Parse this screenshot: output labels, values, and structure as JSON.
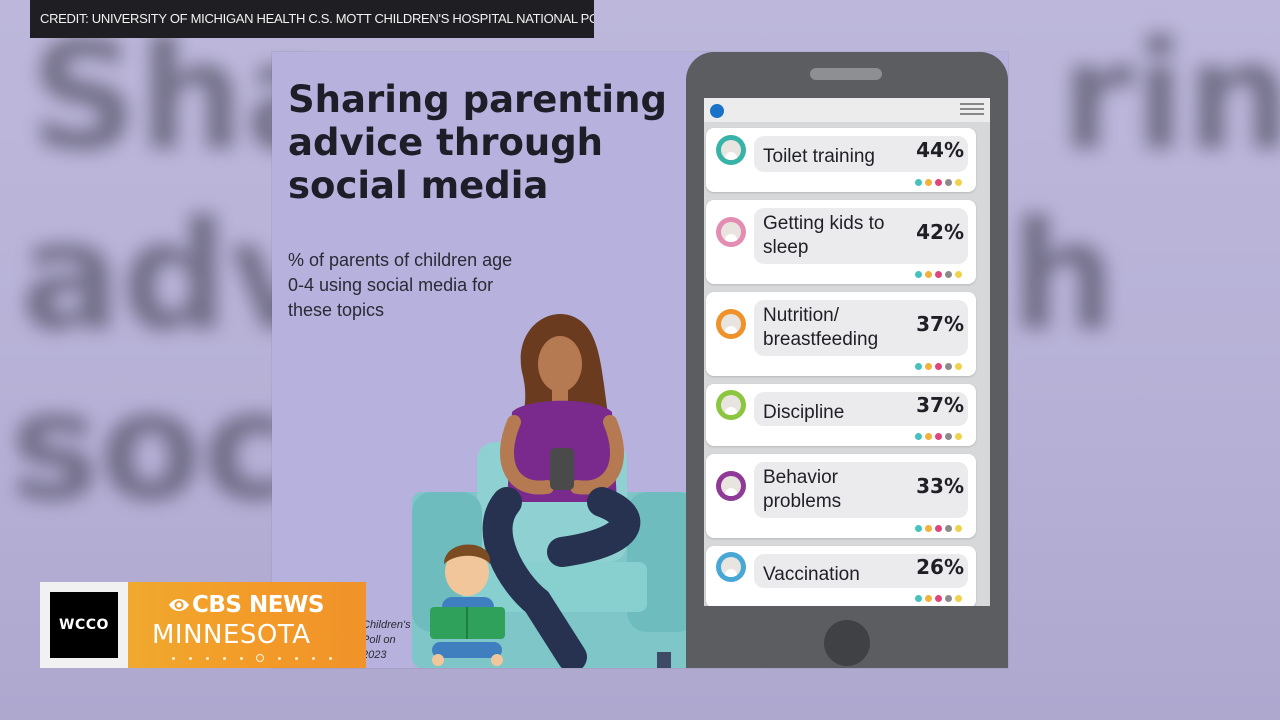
{
  "credit": "CREDIT: UNIVERSITY OF MICHIGAN HEALTH C.S. MOTT CHILDREN'S HOSPITAL NATIONAL POLL ON CHILDREN'S HEALTH",
  "infographic": {
    "title": "Sharing parenting advice through social media",
    "subtitle": "% of parents of children age 0-4 using social media for these topics",
    "source_fragment": "Children's Poll on 2023"
  },
  "chart_data": {
    "type": "table",
    "rows": [
      {
        "label": "Toilet training",
        "value": "44%",
        "avatar_color": "#38b3a8"
      },
      {
        "label": "Getting kids to sleep",
        "value": "42%",
        "avatar_color": "#e48db3"
      },
      {
        "label": "Nutrition/ breastfeeding",
        "value": "37%",
        "avatar_color": "#f0922a"
      },
      {
        "label": "Discipline",
        "value": "37%",
        "avatar_color": "#8cc63e"
      },
      {
        "label": "Behavior problems",
        "value": "33%",
        "avatar_color": "#8e3a96"
      },
      {
        "label": "Vaccination",
        "value": "26%",
        "avatar_color": "#49a7d6"
      }
    ]
  },
  "lower_third": {
    "station": "WCCO",
    "network": "CBS NEWS",
    "region": "MINNESOTA",
    "brand_color": "#f39a28"
  },
  "background_words": [
    "Sha",
    "ring",
    "adv",
    "h",
    "soci"
  ]
}
